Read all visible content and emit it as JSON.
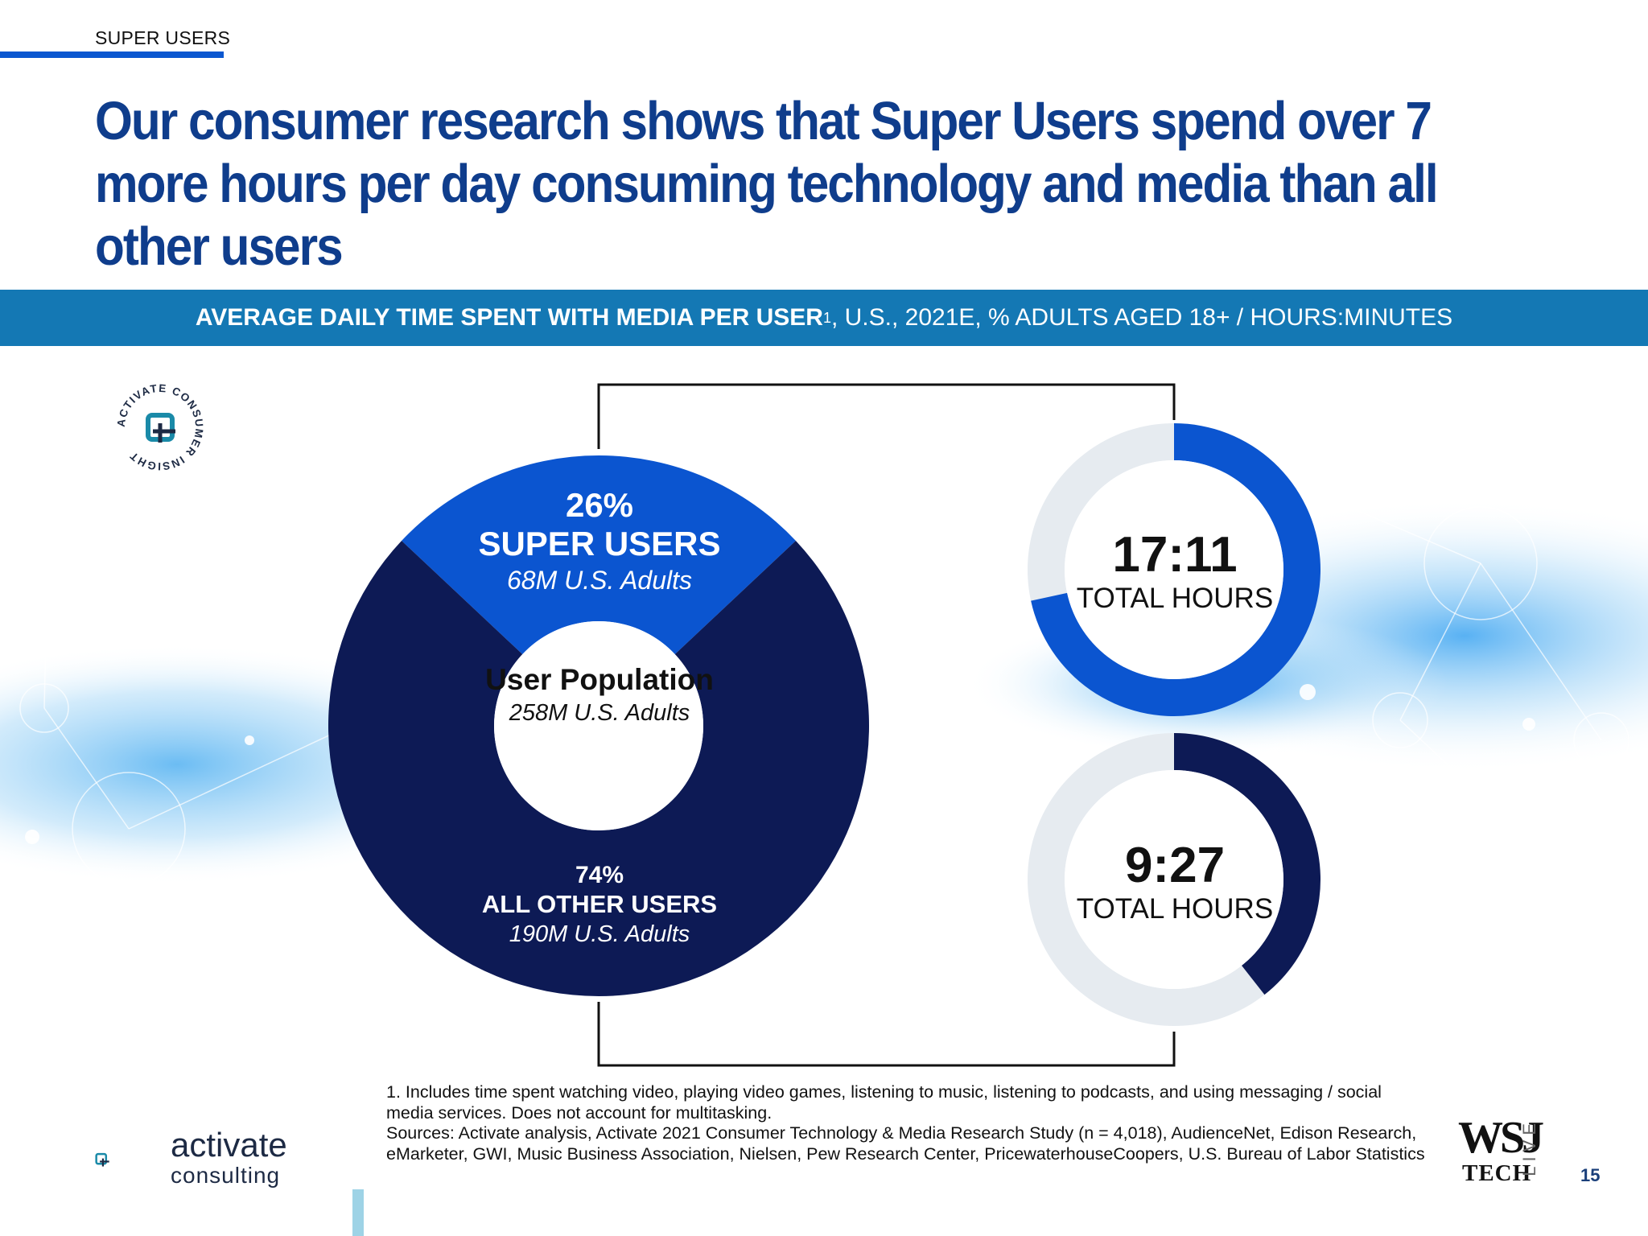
{
  "section": {
    "tag": "SUPER USERS"
  },
  "title": "Our consumer research shows that Super Users spend over 7 more hours per day consuming technology and media than all other users",
  "banner": {
    "bold": "AVERAGE DAILY TIME SPENT WITH MEDIA PER USER",
    "sup": "1",
    "rest": ", U.S., 2021E, % ADULTS AGED 18+ / HOURS:MINUTES"
  },
  "badge": {
    "text": "ACTIVATE CONSUMER INSIGHT"
  },
  "colors": {
    "super": "#0b55d0",
    "other": "#0d1a55",
    "banner": "#1478b4",
    "track": "#e6ebf0",
    "title": "#0f3d8c"
  },
  "chart_data": {
    "type": "pie",
    "title": "",
    "center": {
      "title": "User Population",
      "subtitle": "258M U.S. Adults"
    },
    "slices": [
      {
        "pct_label": "26%",
        "name": "SUPER USERS",
        "sub": "68M U.S. Adults",
        "value": 26,
        "color": "#0b55d0"
      },
      {
        "pct_label": "74%",
        "name": "ALL OTHER USERS",
        "sub": "190M U.S. Adults",
        "value": 74,
        "color": "#0d1a55"
      }
    ],
    "rings": [
      {
        "value_label": "17:11",
        "caption": "TOTAL HOURS",
        "minutes": 1031,
        "fraction": 0.716,
        "color": "#0b55d0"
      },
      {
        "value_label": "9:27",
        "caption": "TOTAL HOURS",
        "minutes": 567,
        "fraction": 0.394,
        "color": "#0d1a55"
      }
    ]
  },
  "footnotes": {
    "note1": "1. Includes time spent watching video, playing video games, listening to music, listening to podcasts, and using messaging / social media services. Does not account for multitasking.",
    "sources": "Sources: Activate analysis, Activate 2021 Consumer Technology & Media Research Study (n = 4,018), AudienceNet, Edison Research, eMarketer, GWI, Music Business Association, Nielsen, Pew Research Center, PricewaterhouseCoopers, U.S. Bureau of Labor Statistics"
  },
  "logo": {
    "word": "activate",
    "sub": "consulting"
  },
  "wsj": {
    "main": "WSJ",
    "tech": "TECH",
    "live": "LIVE"
  },
  "page": {
    "number": "15"
  }
}
